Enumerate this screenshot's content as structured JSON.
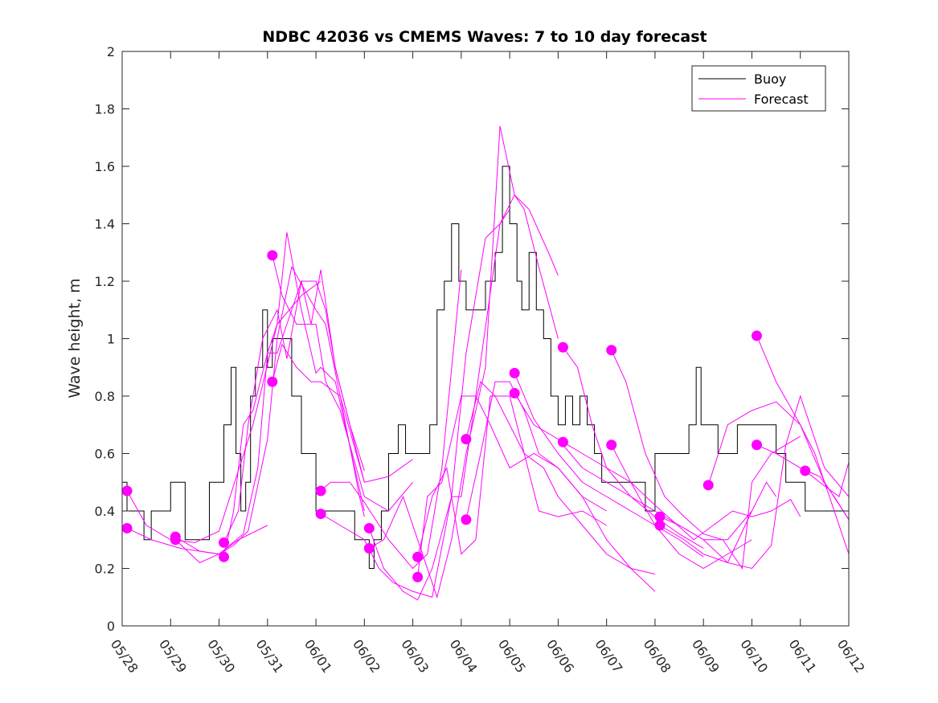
{
  "chart_data": {
    "type": "line",
    "title": "NDBC 42036 vs CMEMS Waves: 7 to 10 day forecast",
    "xlabel": "",
    "ylabel": "Wave height, m",
    "ylim": [
      0,
      2
    ],
    "yticks": [
      0,
      0.2,
      0.4,
      0.6,
      0.8,
      1,
      1.2,
      1.4,
      1.6,
      1.8,
      2
    ],
    "ytick_labels": [
      "0",
      "0.2",
      "0.4",
      "0.6",
      "0.8",
      "1",
      "1.2",
      "1.4",
      "1.6",
      "1.8",
      "2"
    ],
    "xlim": [
      0,
      15
    ],
    "xticks": [
      0,
      1,
      2,
      3,
      4,
      5,
      6,
      7,
      8,
      9,
      10,
      11,
      12,
      13,
      14,
      15
    ],
    "xtick_labels": [
      "05/28",
      "05/29",
      "05/30",
      "05/31",
      "06/01",
      "06/02",
      "06/03",
      "06/04",
      "06/05",
      "06/06",
      "06/07",
      "06/08",
      "06/09",
      "06/10",
      "06/11",
      "06/12"
    ],
    "grid": false,
    "legend": {
      "location": "top-right",
      "entries": [
        "Buoy",
        "Forecast"
      ]
    },
    "colors": {
      "buoy": "#000000",
      "forecast": "#ff00ff",
      "axes": "#262626"
    },
    "series": [
      {
        "name": "Buoy",
        "style": "step",
        "x": [
          0.0,
          0.1,
          0.3,
          0.45,
          0.5,
          0.6,
          0.75,
          1.0,
          1.3,
          1.5,
          1.6,
          1.8,
          1.95,
          2.1,
          2.25,
          2.35,
          2.45,
          2.55,
          2.65,
          2.75,
          2.9,
          3.0,
          3.1,
          3.3,
          3.5,
          3.7,
          3.85,
          4.0,
          4.2,
          4.4,
          4.6,
          4.8,
          5.0,
          5.1,
          5.2,
          5.35,
          5.5,
          5.7,
          5.85,
          6.0,
          6.15,
          6.35,
          6.5,
          6.65,
          6.8,
          6.95,
          7.1,
          7.3,
          7.5,
          7.7,
          7.85,
          8.0,
          8.15,
          8.25,
          8.4,
          8.55,
          8.7,
          8.85,
          9.0,
          9.15,
          9.3,
          9.45,
          9.6,
          9.75,
          9.9,
          10.1,
          10.3,
          10.5,
          10.8,
          11.0,
          11.4,
          11.7,
          11.85,
          11.95,
          12.05,
          12.15,
          12.3,
          12.5,
          12.7,
          12.85,
          13.0,
          13.2,
          13.5,
          13.7,
          13.9,
          14.1,
          14.3,
          14.6,
          14.8,
          15.0
        ],
        "y": [
          0.5,
          0.4,
          0.4,
          0.3,
          0.3,
          0.4,
          0.4,
          0.5,
          0.3,
          0.3,
          0.3,
          0.5,
          0.5,
          0.7,
          0.9,
          0.6,
          0.4,
          0.5,
          0.8,
          0.9,
          1.1,
          0.9,
          1.0,
          1.0,
          0.8,
          0.6,
          0.6,
          0.4,
          0.4,
          0.4,
          0.4,
          0.3,
          0.3,
          0.2,
          0.3,
          0.4,
          0.6,
          0.7,
          0.6,
          0.6,
          0.6,
          0.7,
          1.1,
          1.2,
          1.4,
          1.2,
          1.1,
          1.1,
          1.2,
          1.3,
          1.6,
          1.4,
          1.2,
          1.1,
          1.3,
          1.1,
          1.0,
          0.8,
          0.7,
          0.8,
          0.7,
          0.8,
          0.7,
          0.6,
          0.5,
          0.5,
          0.5,
          0.5,
          0.4,
          0.6,
          0.6,
          0.7,
          0.9,
          0.7,
          0.7,
          0.7,
          0.6,
          0.6,
          0.7,
          0.7,
          0.7,
          0.7,
          0.6,
          0.5,
          0.5,
          0.4,
          0.4,
          0.4,
          0.4,
          0.4
        ]
      },
      {
        "name": "Forecast",
        "forecasts": [
          {
            "x": [
              0.1,
              0.6,
              1.2,
              2.0,
              2.4,
              3.0
            ],
            "y": [
              0.34,
              0.3,
              0.27,
              0.25,
              0.3,
              0.35
            ]
          },
          {
            "x": [
              0.1,
              0.5,
              1.0,
              1.5,
              2.0,
              2.7,
              3.2,
              3.7,
              4.1
            ],
            "y": [
              0.47,
              0.35,
              0.3,
              0.29,
              0.33,
              0.7,
              1.05,
              1.15,
              1.2
            ]
          },
          {
            "x": [
              1.1,
              1.6,
              2.0,
              2.3,
              2.6,
              3.0,
              3.2,
              3.5,
              4.0,
              4.2,
              4.5,
              4.9,
              5.0
            ],
            "y": [
              0.31,
              0.26,
              0.25,
              0.28,
              0.33,
              0.65,
              1.0,
              1.25,
              1.1,
              1.05,
              0.8,
              0.45,
              0.38
            ]
          },
          {
            "x": [
              1.1,
              1.6,
              2.0,
              2.5,
              2.8,
              3.0,
              3.2,
              3.4,
              3.7,
              4.0,
              4.1,
              4.4,
              5.0
            ],
            "y": [
              0.3,
              0.22,
              0.25,
              0.32,
              0.55,
              0.95,
              1.05,
              1.37,
              1.1,
              0.88,
              0.9,
              0.85,
              0.4
            ]
          },
          {
            "x": [
              2.1,
              2.4,
              2.6,
              2.9,
              3.2,
              3.4,
              3.7,
              4.0,
              4.2,
              4.4,
              4.7,
              5.0
            ],
            "y": [
              0.29,
              0.4,
              0.7,
              1.0,
              1.1,
              0.93,
              1.2,
              1.2,
              1.1,
              0.9,
              0.7,
              0.54
            ]
          },
          {
            "x": [
              2.1,
              2.3,
              2.5,
              2.7,
              3.0,
              3.2,
              3.5,
              3.7,
              3.9,
              4.1,
              4.4,
              4.7,
              5.0
            ],
            "y": [
              0.24,
              0.4,
              0.7,
              0.75,
              0.95,
              0.95,
              1.1,
              1.2,
              1.05,
              1.24,
              0.9,
              0.7,
              0.5
            ]
          },
          {
            "x": [
              3.1,
              3.3,
              3.6,
              4.0,
              4.2,
              4.5,
              5.0,
              5.5,
              6.0
            ],
            "y": [
              1.29,
              1.15,
              1.05,
              1.05,
              0.85,
              0.75,
              0.45,
              0.4,
              0.5
            ]
          },
          {
            "x": [
              3.1,
              3.3,
              3.6,
              3.9,
              4.1,
              4.5,
              5.0,
              5.5,
              6.0
            ],
            "y": [
              0.85,
              0.98,
              0.9,
              0.85,
              0.85,
              0.8,
              0.5,
              0.52,
              0.58
            ]
          },
          {
            "x": [
              4.1,
              4.3,
              4.7,
              5.0,
              5.5,
              6.0,
              6.3,
              6.6,
              7.0
            ],
            "y": [
              0.47,
              0.5,
              0.5,
              0.43,
              0.3,
              0.2,
              0.25,
              0.55,
              1.24
            ]
          },
          {
            "x": [
              4.1,
              4.5,
              5.0,
              5.3,
              5.6,
              6.0,
              6.4,
              6.8,
              7.1,
              7.5,
              7.8,
              8.0
            ],
            "y": [
              0.39,
              0.35,
              0.3,
              0.2,
              0.15,
              0.12,
              0.1,
              0.45,
              0.95,
              1.35,
              1.4,
              1.45
            ]
          },
          {
            "x": [
              5.1,
              5.4,
              5.8,
              6.2,
              6.5,
              6.8,
              7.1,
              7.5,
              7.8,
              8.1,
              8.3,
              8.6,
              9.0
            ],
            "y": [
              0.27,
              0.3,
              0.45,
              0.25,
              0.1,
              0.3,
              0.6,
              0.9,
              1.74,
              1.5,
              1.45,
              1.25,
              1.0
            ]
          },
          {
            "x": [
              5.1,
              5.4,
              5.8,
              6.1,
              6.4,
              6.8,
              7.0,
              7.3,
              7.8,
              8.1,
              8.4,
              8.8,
              9.0
            ],
            "y": [
              0.34,
              0.2,
              0.12,
              0.09,
              0.2,
              0.45,
              0.45,
              0.8,
              1.4,
              1.5,
              1.45,
              1.3,
              1.22
            ]
          },
          {
            "x": [
              6.1,
              6.4,
              6.7,
              7.0,
              7.3,
              7.6,
              8.0,
              8.3,
              8.6,
              9.0,
              9.5,
              10.0
            ],
            "y": [
              0.24,
              0.45,
              0.55,
              0.25,
              0.3,
              0.8,
              0.8,
              0.6,
              0.4,
              0.38,
              0.4,
              0.35
            ]
          },
          {
            "x": [
              6.1,
              6.3,
              6.6,
              7.0,
              7.3,
              7.6,
              8.0,
              8.5,
              9.0,
              9.5,
              10.0
            ],
            "y": [
              0.17,
              0.45,
              0.5,
              0.8,
              0.8,
              0.7,
              0.55,
              0.6,
              0.55,
              0.45,
              0.4
            ]
          },
          {
            "x": [
              7.1,
              7.4,
              7.7,
              8.0,
              8.3,
              8.7,
              9.0,
              9.5,
              10.0,
              10.5,
              11.0
            ],
            "y": [
              0.65,
              0.85,
              0.8,
              0.7,
              0.6,
              0.55,
              0.45,
              0.35,
              0.25,
              0.2,
              0.18
            ]
          },
          {
            "x": [
              7.1,
              7.4,
              7.7,
              8.0,
              8.3,
              8.6,
              9.0,
              9.5,
              10.0,
              10.5,
              11.0
            ],
            "y": [
              0.37,
              0.6,
              0.85,
              0.85,
              0.75,
              0.6,
              0.55,
              0.45,
              0.3,
              0.2,
              0.12
            ]
          },
          {
            "x": [
              8.1,
              8.5,
              9.0,
              9.5,
              10.0,
              10.5,
              11.0,
              11.5,
              12.0
            ],
            "y": [
              0.88,
              0.72,
              0.6,
              0.5,
              0.45,
              0.4,
              0.35,
              0.3,
              0.24
            ]
          },
          {
            "x": [
              8.1,
              8.5,
              9.0,
              9.5,
              10.0,
              10.5,
              11.0,
              11.5,
              12.0
            ],
            "y": [
              0.81,
              0.7,
              0.65,
              0.55,
              0.5,
              0.45,
              0.38,
              0.32,
              0.27
            ]
          },
          {
            "x": [
              9.1,
              9.4,
              9.7,
              10.0,
              10.5,
              11.0,
              11.5,
              12.0,
              12.5,
              13.0
            ],
            "y": [
              0.97,
              0.9,
              0.7,
              0.55,
              0.45,
              0.4,
              0.35,
              0.3,
              0.3,
              0.4
            ]
          },
          {
            "x": [
              9.1,
              9.5,
              10.0,
              10.5,
              11.0,
              11.5,
              12.0,
              12.5,
              13.0
            ],
            "y": [
              0.64,
              0.6,
              0.55,
              0.5,
              0.35,
              0.25,
              0.2,
              0.25,
              0.3
            ]
          },
          {
            "x": [
              10.1,
              10.4,
              10.8,
              11.2,
              11.6,
              12.0,
              12.4,
              12.8,
              13.0,
              13.4,
              13.7,
              14.0
            ],
            "y": [
              0.96,
              0.85,
              0.6,
              0.45,
              0.38,
              0.32,
              0.3,
              0.2,
              0.5,
              0.6,
              0.63,
              0.66
            ]
          },
          {
            "x": [
              10.1,
              10.5,
              11.0,
              11.4,
              11.8,
              12.2,
              12.6,
              13.0,
              13.4,
              13.8,
              14.0
            ],
            "y": [
              0.63,
              0.5,
              0.42,
              0.36,
              0.3,
              0.35,
              0.4,
              0.38,
              0.4,
              0.44,
              0.38
            ]
          },
          {
            "x": [
              11.1,
              11.5,
              12.0,
              12.5,
              13.0,
              13.4,
              13.7,
              14.0,
              14.5,
              15.0
            ],
            "y": [
              0.38,
              0.35,
              0.3,
              0.22,
              0.2,
              0.28,
              0.63,
              0.8,
              0.55,
              0.45
            ]
          },
          {
            "x": [
              11.1,
              11.6,
              12.0,
              12.5,
              13.0,
              13.3,
              13.5
            ],
            "y": [
              0.35,
              0.3,
              0.25,
              0.22,
              0.4,
              0.5,
              0.45
            ]
          },
          {
            "x": [
              12.1,
              12.5,
              13.0,
              13.5,
              14.0,
              14.5,
              15.0
            ],
            "y": [
              0.49,
              0.7,
              0.75,
              0.78,
              0.7,
              0.5,
              0.37
            ]
          },
          {
            "x": [
              13.1,
              13.5,
              14.0,
              14.3,
              14.6,
              15.0
            ],
            "y": [
              1.01,
              0.85,
              0.7,
              0.6,
              0.45,
              0.25
            ]
          },
          {
            "x": [
              13.1,
              13.5,
              14.0,
              14.4,
              14.7,
              15.0
            ],
            "y": [
              0.63,
              0.6,
              0.55,
              0.52,
              0.45,
              0.37
            ]
          },
          {
            "x": [
              14.1,
              14.4,
              14.8,
              15.0
            ],
            "y": [
              0.54,
              0.5,
              0.45,
              0.57
            ]
          }
        ]
      }
    ]
  }
}
